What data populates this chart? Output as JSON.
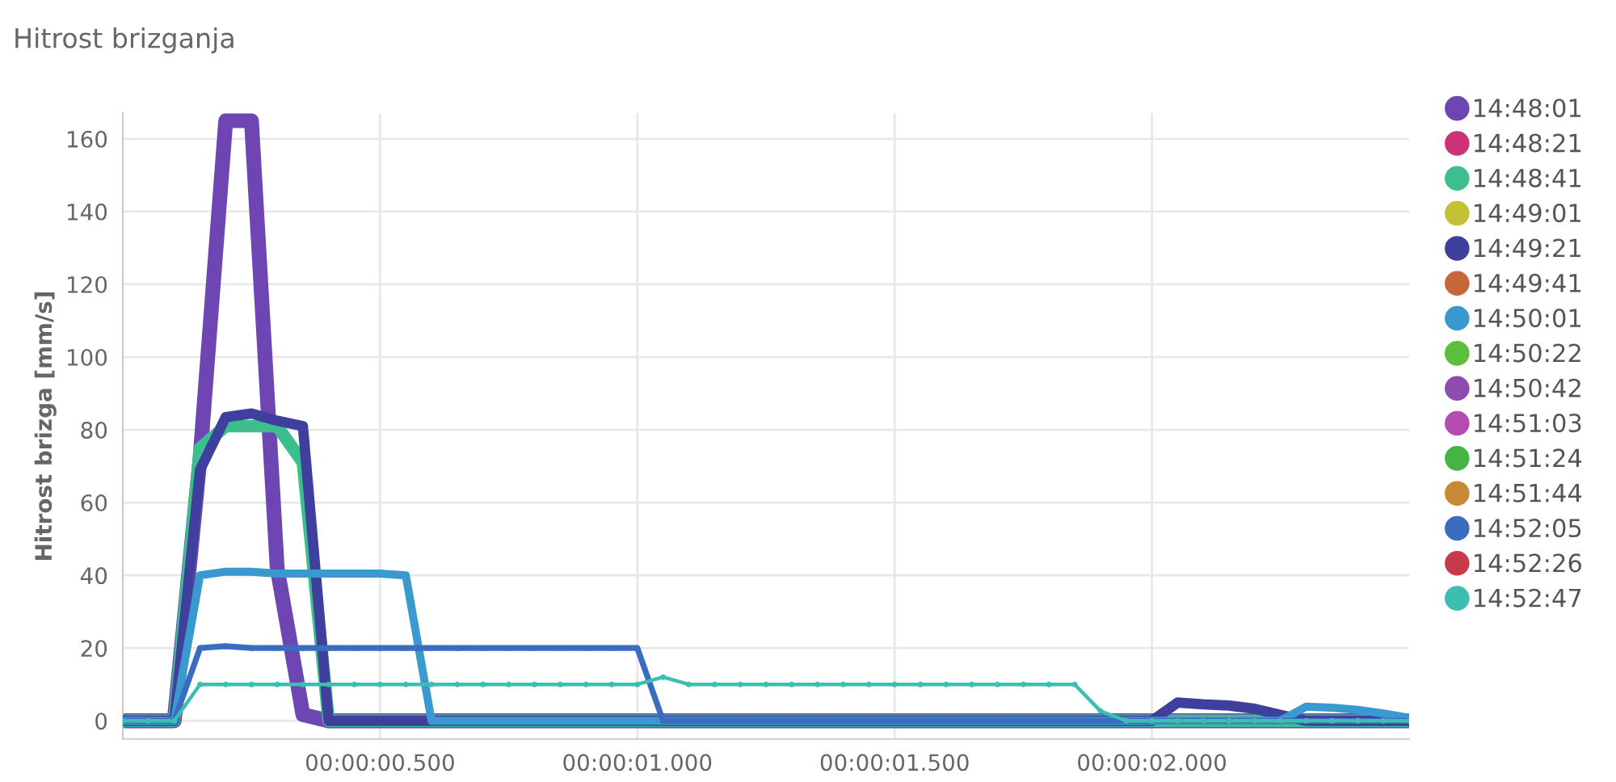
{
  "chart_data": {
    "type": "line",
    "title": "Hitrost brizganja",
    "ylabel": "Hitrost brizga [mm/s]",
    "categories": [
      null,
      null,
      null,
      null,
      null,
      null,
      null,
      null,
      null,
      null,
      "00:00:00.500",
      null,
      null,
      null,
      null,
      null,
      null,
      null,
      null,
      null,
      "00:00:01.000",
      null,
      null,
      null,
      null,
      null,
      null,
      null,
      null,
      null,
      "00:00:01.500",
      null,
      null,
      null,
      null,
      null,
      null,
      null,
      null,
      null,
      "00:00:02.000",
      null,
      null,
      null,
      null,
      null,
      null,
      null,
      null,
      null,
      null
    ],
    "ylim": [
      -5,
      167
    ],
    "yticks": [
      0,
      20,
      40,
      60,
      80,
      100,
      120,
      140,
      160
    ],
    "grid": true,
    "legend": "top right",
    "marker": "circle",
    "line_style": "solid",
    "series": [
      {
        "name": "14:48:01",
        "color": "#6e46b4",
        "values": [
          0,
          0,
          0,
          72,
          165,
          165,
          42,
          1.7,
          0,
          0,
          0,
          0,
          0,
          0,
          0,
          0,
          0,
          0,
          0,
          0,
          0,
          0,
          0,
          0,
          0,
          0,
          0,
          0,
          0,
          0,
          0,
          0,
          0,
          0,
          0,
          0,
          0,
          0,
          0,
          0,
          0,
          0,
          0,
          0,
          0,
          0,
          0,
          0,
          0,
          0,
          0
        ]
      },
      {
        "name": "14:48:21",
        "color": "#cc3377",
        "values": [
          null,
          null,
          null,
          null,
          null,
          null,
          null,
          null,
          null,
          null,
          null,
          null,
          null,
          null,
          null,
          null,
          null,
          null,
          null,
          null,
          null,
          null,
          null,
          null,
          null,
          null,
          null,
          null,
          null,
          null,
          null,
          null,
          null,
          null,
          null,
          null,
          null,
          null,
          null,
          null,
          null,
          null,
          null,
          null,
          null,
          null,
          null,
          null,
          null,
          null,
          null
        ]
      },
      {
        "name": "14:48:41",
        "color": "#3cbf8c",
        "values": [
          0,
          0,
          0,
          75,
          81,
          81,
          81,
          71,
          0,
          0,
          0,
          0,
          0,
          0,
          0,
          0,
          0,
          0,
          0,
          0,
          0,
          0,
          0,
          0,
          0,
          0,
          0,
          0,
          0,
          0,
          0,
          0,
          0,
          0,
          0,
          0,
          0,
          0,
          0,
          0,
          0,
          0,
          0,
          0,
          0,
          0,
          0,
          0,
          0,
          0,
          0
        ]
      },
      {
        "name": "14:49:01",
        "color": "#c2c234",
        "values": [
          null,
          null,
          null,
          null,
          null,
          null,
          null,
          null,
          null,
          null,
          null,
          null,
          null,
          null,
          null,
          null,
          null,
          null,
          null,
          null,
          null,
          null,
          null,
          null,
          null,
          null,
          null,
          null,
          null,
          null,
          null,
          null,
          null,
          null,
          null,
          null,
          null,
          null,
          null,
          null,
          null,
          null,
          null,
          null,
          null,
          null,
          null,
          null,
          null,
          null,
          null
        ]
      },
      {
        "name": "14:49:21",
        "color": "#3f3f9e",
        "values": [
          0,
          0,
          0,
          69,
          83.5,
          84.5,
          82.5,
          81,
          0,
          0,
          0,
          0,
          0,
          0,
          0,
          0,
          0,
          0,
          0,
          0,
          0,
          0,
          0,
          0,
          0,
          0,
          0,
          0,
          0,
          0,
          0,
          0,
          0,
          0,
          0,
          0,
          0,
          0,
          0,
          0,
          0,
          5,
          4.5,
          4.2,
          3.3,
          1.6,
          0,
          0,
          0,
          0,
          0
        ]
      },
      {
        "name": "14:49:41",
        "color": "#c8663a",
        "values": [
          null,
          null,
          null,
          null,
          null,
          null,
          null,
          null,
          null,
          null,
          null,
          null,
          null,
          null,
          null,
          null,
          null,
          null,
          null,
          null,
          null,
          null,
          null,
          null,
          null,
          null,
          null,
          null,
          null,
          null,
          null,
          null,
          null,
          null,
          null,
          null,
          null,
          null,
          null,
          null,
          null,
          null,
          null,
          null,
          null,
          null,
          null,
          null,
          null,
          null,
          null
        ]
      },
      {
        "name": "14:50:01",
        "color": "#3a9ad0",
        "values": [
          0,
          0,
          0,
          40,
          41,
          41,
          40.5,
          40.5,
          40.5,
          40.5,
          40.5,
          40,
          0,
          0,
          0,
          0,
          0,
          0,
          0,
          0,
          0,
          0,
          0,
          0,
          0,
          0,
          0,
          0,
          0,
          0,
          0,
          0,
          0,
          0,
          0,
          0,
          0,
          0,
          0,
          0,
          0,
          0,
          0,
          0,
          0,
          0,
          3.9,
          3.6,
          3,
          2,
          0.8
        ]
      },
      {
        "name": "14:50:22",
        "color": "#5cbf3c",
        "values": [
          null,
          null,
          null,
          null,
          null,
          null,
          null,
          null,
          null,
          null,
          null,
          null,
          null,
          null,
          null,
          null,
          null,
          null,
          null,
          null,
          null,
          null,
          null,
          null,
          null,
          null,
          null,
          null,
          null,
          null,
          null,
          null,
          null,
          null,
          null,
          null,
          null,
          null,
          null,
          null,
          null,
          null,
          null,
          null,
          null,
          null,
          null,
          null,
          null,
          null,
          null
        ]
      },
      {
        "name": "14:50:42",
        "color": "#8e4bb0",
        "values": [
          null,
          null,
          null,
          null,
          null,
          null,
          null,
          null,
          null,
          null,
          null,
          null,
          null,
          null,
          null,
          null,
          null,
          null,
          null,
          null,
          null,
          null,
          null,
          null,
          null,
          null,
          null,
          null,
          null,
          null,
          null,
          null,
          null,
          null,
          null,
          null,
          null,
          null,
          null,
          null,
          null,
          null,
          null,
          null,
          null,
          null,
          null,
          null,
          null,
          null,
          null
        ]
      },
      {
        "name": "14:51:03",
        "color": "#b44bb0",
        "values": [
          null,
          null,
          null,
          null,
          null,
          null,
          null,
          null,
          null,
          null,
          null,
          null,
          null,
          null,
          null,
          null,
          null,
          null,
          null,
          null,
          null,
          null,
          null,
          null,
          null,
          null,
          null,
          null,
          null,
          null,
          null,
          null,
          null,
          null,
          null,
          null,
          null,
          null,
          null,
          null,
          null,
          null,
          null,
          null,
          null,
          null,
          null,
          null,
          null,
          null,
          null
        ]
      },
      {
        "name": "14:51:24",
        "color": "#44b444",
        "values": [
          null,
          null,
          null,
          null,
          null,
          null,
          null,
          null,
          null,
          null,
          null,
          null,
          null,
          null,
          null,
          null,
          null,
          null,
          null,
          null,
          null,
          null,
          null,
          null,
          null,
          null,
          null,
          null,
          null,
          null,
          null,
          null,
          null,
          null,
          null,
          null,
          null,
          null,
          null,
          null,
          null,
          null,
          null,
          null,
          null,
          null,
          null,
          null,
          null,
          null,
          null
        ]
      },
      {
        "name": "14:51:44",
        "color": "#c88a34",
        "values": [
          null,
          null,
          null,
          null,
          null,
          null,
          null,
          null,
          null,
          null,
          null,
          null,
          null,
          null,
          null,
          null,
          null,
          null,
          null,
          null,
          null,
          null,
          null,
          null,
          null,
          null,
          null,
          null,
          null,
          null,
          null,
          null,
          null,
          null,
          null,
          null,
          null,
          null,
          null,
          null,
          null,
          null,
          null,
          null,
          null,
          null,
          null,
          null,
          null,
          null,
          null
        ]
      },
      {
        "name": "14:52:05",
        "color": "#3a6cc0",
        "values": [
          0,
          0,
          0,
          20,
          20.5,
          20,
          20,
          20,
          20,
          20,
          20,
          20,
          20,
          20,
          20,
          20,
          20,
          20,
          20,
          20,
          20,
          0,
          0,
          0,
          0,
          0,
          0,
          0,
          0,
          0,
          0,
          0,
          0,
          0,
          0,
          0,
          0,
          0,
          0,
          0,
          0,
          0,
          0,
          0,
          0,
          0,
          0,
          0,
          0,
          0,
          0
        ]
      },
      {
        "name": "14:52:26",
        "color": "#c83a4a",
        "values": [
          null,
          null,
          null,
          null,
          null,
          null,
          null,
          null,
          null,
          null,
          null,
          null,
          null,
          null,
          null,
          null,
          null,
          null,
          null,
          null,
          null,
          null,
          null,
          null,
          null,
          null,
          null,
          null,
          null,
          null,
          null,
          null,
          null,
          null,
          null,
          null,
          null,
          null,
          null,
          null,
          null,
          null,
          null,
          null,
          null,
          null,
          null,
          null,
          null,
          null,
          null
        ]
      },
      {
        "name": "14:52:47",
        "color": "#3cbfb0",
        "values": [
          0,
          0,
          0,
          10,
          10,
          10,
          10,
          10,
          10,
          10,
          10,
          10,
          10,
          10,
          10,
          10,
          10,
          10,
          10,
          10,
          10,
          12,
          10,
          10,
          10,
          10,
          10,
          10,
          10,
          10,
          10,
          10,
          10,
          10,
          10,
          10,
          10,
          10,
          2.7,
          0,
          0,
          0,
          0,
          0,
          0,
          0,
          0,
          0,
          0,
          0,
          0
        ]
      }
    ]
  }
}
